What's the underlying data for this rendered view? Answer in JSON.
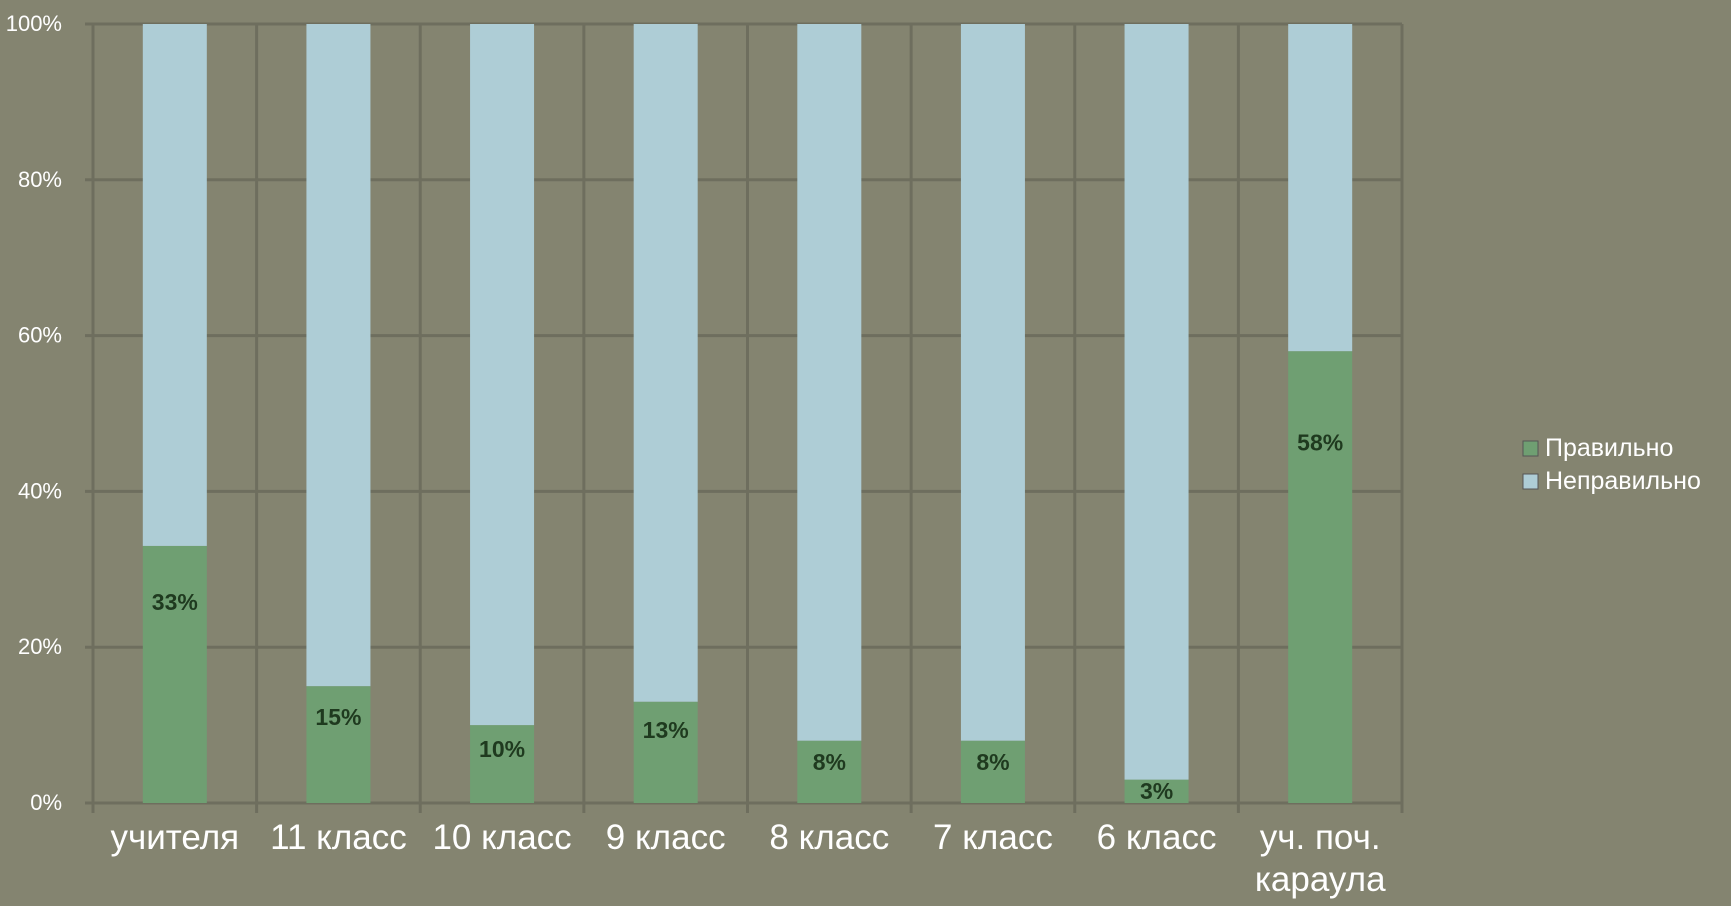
{
  "colors": {
    "background": "#848470",
    "gridline": "#6e6e5e",
    "correct": "#6f9f72",
    "incorrect": "#aecdd6",
    "axis_text": "#ffffff",
    "label_text": "#1f3a1f"
  },
  "chart_data": {
    "type": "bar",
    "stacked": true,
    "percent": true,
    "categories": [
      "учителя",
      "11 класс",
      "10 класс",
      "9 класс",
      "8 класс",
      "7 класс",
      "6 класс",
      "уч. поч. караула"
    ],
    "series": [
      {
        "name": "Правильно",
        "values": [
          33,
          15,
          10,
          13,
          8,
          8,
          3,
          58
        ],
        "data_labels": [
          "33%",
          "15%",
          "10%",
          "13%",
          "8%",
          "8%",
          "3%",
          "58%"
        ]
      },
      {
        "name": "Неправильно",
        "values": [
          67,
          85,
          90,
          87,
          92,
          92,
          97,
          42
        ]
      }
    ],
    "ylim": [
      0,
      100
    ],
    "yticks": [
      "0%",
      "20%",
      "40%",
      "60%",
      "80%",
      "100%"
    ],
    "legend": "right",
    "grid": true
  }
}
